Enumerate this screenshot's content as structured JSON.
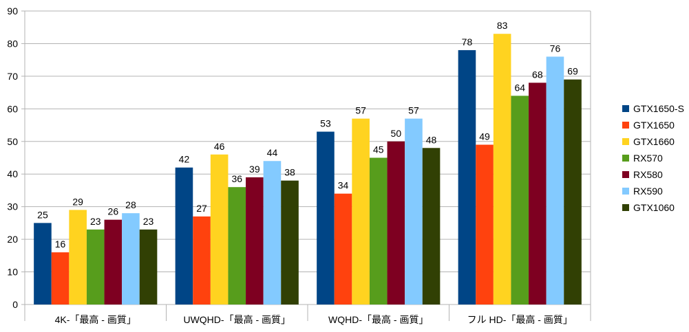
{
  "chart_data": {
    "type": "bar",
    "title": "",
    "xlabel": "",
    "ylabel": "",
    "ylim": [
      0,
      90
    ],
    "yticks": [
      0,
      10,
      20,
      30,
      40,
      50,
      60,
      70,
      80,
      90
    ],
    "grid": "horizontal",
    "legend_position": "right",
    "categories": [
      "4K-「最高 - 画質」",
      "UWQHD-「最高 - 画質」",
      "WQHD-「最高 - 画質」",
      "フル HD-「最高 - 画質」"
    ],
    "series": [
      {
        "name": "GTX1650-S",
        "color": "#004586",
        "values": [
          25,
          42,
          53,
          78
        ]
      },
      {
        "name": "GTX1650",
        "color": "#ff420e",
        "values": [
          16,
          27,
          34,
          49
        ]
      },
      {
        "name": "GTX1660",
        "color": "#ffd320",
        "values": [
          29,
          46,
          57,
          83
        ]
      },
      {
        "name": "RX570",
        "color": "#579d1c",
        "values": [
          23,
          36,
          45,
          64
        ]
      },
      {
        "name": "RX580",
        "color": "#7e0021",
        "values": [
          26,
          39,
          50,
          68
        ]
      },
      {
        "name": "RX590",
        "color": "#83caff",
        "values": [
          28,
          44,
          57,
          76
        ]
      },
      {
        "name": "GTX1060",
        "color": "#314004",
        "values": [
          23,
          38,
          48,
          69
        ]
      }
    ]
  }
}
